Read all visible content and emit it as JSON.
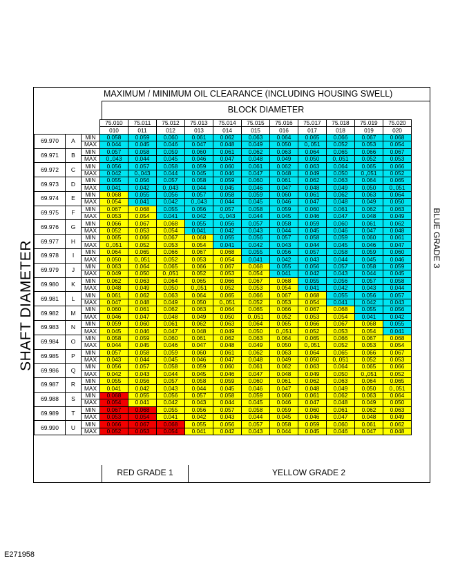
{
  "title": "MAXIMUM / MINIMUM OIL CLEARANCE (INCLUDING HOUSING SWELL)",
  "block_diameter_label": "BLOCK DIAMETER",
  "shaft_diameter_label": "SHAFT DIAMETER",
  "blue_grade_label": "BLUE GRADE 3",
  "red_grade_label": "RED GRADE 1",
  "yellow_grade_label": "YELLOW GRADE 2",
  "figure_code": "E271958",
  "colors": {
    "blue": "#00e5f2",
    "yellow": "#ffff00",
    "red": "#f20000"
  },
  "block_diameters": [
    "75.010",
    "75.011",
    "75.012",
    "75.013",
    "75.014",
    "75.015",
    "75.016",
    "75.017",
    "75.018",
    "75.019",
    "75.020"
  ],
  "block_codes": [
    "010",
    "011",
    "012",
    "013",
    "014",
    "015",
    "016",
    "017",
    "018",
    "019",
    "020"
  ],
  "rows": [
    {
      "diameter": "69.970",
      "letter": "A",
      "min": [
        "0.058",
        "0.059",
        "0.060",
        "0.061",
        "0.062",
        "0.063",
        "0.064",
        "0.065",
        "0.066",
        "0.067",
        "0.068"
      ],
      "max": [
        "0.044",
        "0.045",
        "0.046",
        "0.047",
        "0.048",
        "0.049",
        "0.050",
        "0,.051",
        "0.052",
        "0.053",
        "0.054"
      ],
      "min_colors": [
        "b",
        "b",
        "b",
        "b",
        "b",
        "b",
        "b",
        "b",
        "b",
        "b",
        "b"
      ],
      "max_colors": [
        "b",
        "b",
        "b",
        "b",
        "b",
        "b",
        "b",
        "b",
        "b",
        "b",
        "b"
      ]
    },
    {
      "diameter": "69.971",
      "letter": "B",
      "min": [
        "0.057",
        "0.058",
        "0.059",
        "0.060",
        "0.061",
        "0.062",
        "0.063",
        "0.064",
        "0.065",
        "0.066",
        "0.067"
      ],
      "max": [
        "0,.043",
        "0.044",
        "0.045",
        "0.046",
        "0.047",
        "0.048",
        "0.049",
        "0.050",
        "0,.051",
        "0.052",
        "0.053"
      ],
      "min_colors": [
        "b",
        "b",
        "b",
        "b",
        "b",
        "b",
        "b",
        "b",
        "b",
        "b",
        "b"
      ],
      "max_colors": [
        "b",
        "b",
        "b",
        "b",
        "b",
        "b",
        "b",
        "b",
        "b",
        "b",
        "b"
      ]
    },
    {
      "diameter": "69.972",
      "letter": "C",
      "min": [
        "0.056",
        "0.057",
        "0.058",
        "0.059",
        "0.060",
        "0.061",
        "0.062",
        "0.063",
        "0.064",
        "0.065",
        "0.066"
      ],
      "max": [
        "0.042",
        "0.,043",
        "0.044",
        "0.045",
        "0.046",
        "0.047",
        "0.048",
        "0.049",
        "0.050",
        "0.,051",
        "0.052"
      ],
      "min_colors": [
        "b",
        "b",
        "b",
        "b",
        "b",
        "b",
        "b",
        "b",
        "b",
        "b",
        "b"
      ],
      "max_colors": [
        "b",
        "b",
        "b",
        "b",
        "b",
        "b",
        "b",
        "b",
        "b",
        "b",
        "b"
      ]
    },
    {
      "diameter": "69.973",
      "letter": "D",
      "min": [
        "0.055",
        "0.056",
        "0.057",
        "0.058",
        "0.059",
        "0.060",
        "0.061",
        "0.062",
        "0.063",
        "0.064",
        "0.065"
      ],
      "max": [
        "0.041",
        "0.042",
        "0.,043",
        "0.044",
        "0.045",
        "0.046",
        "0.047",
        "0.048",
        "0.049",
        "0.050",
        "0.,051"
      ],
      "min_colors": [
        "b",
        "b",
        "b",
        "b",
        "b",
        "b",
        "b",
        "b",
        "b",
        "b",
        "b"
      ],
      "max_colors": [
        "b",
        "b",
        "b",
        "b",
        "b",
        "b",
        "b",
        "b",
        "b",
        "b",
        "b"
      ]
    },
    {
      "diameter": "69.974",
      "letter": "E",
      "min": [
        "0.068",
        "0.055",
        "0.056",
        "0.057",
        "0.058",
        "0.059",
        "0.060",
        "0.061",
        "0.062",
        "0.063",
        "0.064"
      ],
      "max": [
        "0.054",
        "0.041",
        "0.042",
        "0,.043",
        "0.044",
        "0.045",
        "0.046",
        "0.047",
        "0.048",
        "0.049",
        "0.050"
      ],
      "min_colors": [
        "y",
        "b",
        "b",
        "b",
        "b",
        "b",
        "b",
        "b",
        "b",
        "b",
        "b"
      ],
      "max_colors": [
        "y",
        "b",
        "b",
        "b",
        "b",
        "b",
        "b",
        "b",
        "b",
        "b",
        "b"
      ]
    },
    {
      "diameter": "69.975",
      "letter": "F",
      "min": [
        "0.067",
        "0.068",
        "0.055",
        "0.056",
        "0.057",
        "0.058",
        "0.059",
        "0.060",
        "0.061",
        "0.062",
        "0.063"
      ],
      "max": [
        "0.053",
        "0.054",
        "0.041",
        "0.042",
        "0,.043",
        "0.044",
        "0.045",
        "0.046",
        "0.047",
        "0.048",
        "0.049"
      ],
      "min_colors": [
        "y",
        "y",
        "b",
        "b",
        "b",
        "b",
        "b",
        "b",
        "b",
        "b",
        "b"
      ],
      "max_colors": [
        "y",
        "y",
        "b",
        "b",
        "b",
        "b",
        "b",
        "b",
        "b",
        "b",
        "b"
      ]
    },
    {
      "diameter": "69.976",
      "letter": "G",
      "min": [
        "0.066",
        "0.067",
        "0.068",
        "0.055",
        "0.056",
        "0.057",
        "0.058",
        "0.059",
        "0.060",
        "0.061",
        "0.062"
      ],
      "max": [
        "0.052",
        "0.053",
        "0.054",
        "0.041",
        "0.042",
        "0.043",
        "0.044",
        "0.045",
        "0.046",
        "0.047",
        "0.048"
      ],
      "min_colors": [
        "y",
        "y",
        "y",
        "b",
        "b",
        "b",
        "b",
        "b",
        "b",
        "b",
        "b"
      ],
      "max_colors": [
        "y",
        "y",
        "y",
        "b",
        "b",
        "b",
        "b",
        "b",
        "b",
        "b",
        "b"
      ]
    },
    {
      "diameter": "69.977",
      "letter": "H",
      "min": [
        "0.065",
        "0.066",
        "0.067",
        "0.068",
        "0.055",
        "0.056",
        "0.057",
        "0.058",
        "0.059",
        "0.060",
        "0.061"
      ],
      "max": [
        "0,.051",
        "0.052",
        "0.053",
        "0.054",
        "0.041",
        "0.042",
        "0.043",
        "0.044",
        "0.045",
        "0.046",
        "0.047"
      ],
      "min_colors": [
        "y",
        "y",
        "y",
        "y",
        "b",
        "b",
        "b",
        "b",
        "b",
        "b",
        "b"
      ],
      "max_colors": [
        "y",
        "y",
        "y",
        "y",
        "b",
        "b",
        "b",
        "b",
        "b",
        "b",
        "b"
      ]
    },
    {
      "diameter": "69.978",
      "letter": "I",
      "min": [
        "0.064",
        "0.065",
        "0.066",
        "0.067",
        "0.068",
        "0.055",
        "0.056",
        "0.057",
        "0.058",
        "0.059",
        "0.060"
      ],
      "max": [
        "0.050",
        "0.,051",
        "0.052",
        "0.053",
        "0.054",
        "0.041",
        "0.042",
        "0.043",
        "0.044",
        "0.045",
        "0.046"
      ],
      "min_colors": [
        "y",
        "y",
        "y",
        "y",
        "y",
        "b",
        "b",
        "b",
        "b",
        "b",
        "b"
      ],
      "max_colors": [
        "y",
        "y",
        "y",
        "y",
        "y",
        "b",
        "b",
        "b",
        "b",
        "b",
        "b"
      ]
    },
    {
      "diameter": "69.979",
      "letter": "J",
      "min": [
        "0.063",
        "0.064",
        "0.065",
        "0.066",
        "0.067",
        "0.068",
        "0.055",
        "0.056",
        "0.057",
        "0.058",
        "0.059"
      ],
      "max": [
        "0.049",
        "0.050",
        "0.,051",
        "0.052",
        "0.053",
        "0.054",
        "0.041",
        "0.042",
        "0.043",
        "0.044",
        "0.045"
      ],
      "min_colors": [
        "y",
        "y",
        "y",
        "y",
        "y",
        "y",
        "b",
        "b",
        "b",
        "b",
        "b"
      ],
      "max_colors": [
        "y",
        "y",
        "y",
        "y",
        "y",
        "y",
        "b",
        "b",
        "b",
        "b",
        "b"
      ]
    },
    {
      "diameter": "69.980",
      "letter": "K",
      "min": [
        "0.062",
        "0.063",
        "0.064",
        "0.065",
        "0.066",
        "0.067",
        "0.068",
        "0.055",
        "0.056",
        "0.057",
        "0.058"
      ],
      "max": [
        "0.048",
        "0.049",
        "0.050",
        "0.,051",
        "0.052",
        "0.053",
        "0.054",
        "0.041",
        "0.042",
        "0.043",
        "0.044"
      ],
      "min_colors": [
        "y",
        "y",
        "y",
        "y",
        "y",
        "y",
        "y",
        "b",
        "b",
        "b",
        "b"
      ],
      "max_colors": [
        "y",
        "y",
        "y",
        "y",
        "y",
        "y",
        "y",
        "b",
        "b",
        "b",
        "b"
      ]
    },
    {
      "diameter": "69.981",
      "letter": "L",
      "min": [
        "0.061",
        "0.062",
        "0.063",
        "0.064",
        "0.065",
        "0.066",
        "0.067",
        "0.068",
        "0.055",
        "0.056",
        "0.057"
      ],
      "max": [
        "0.047",
        "0.048",
        "0.049",
        "0.050",
        "0.,051",
        "0.052",
        "0.053",
        "0.054",
        "0.041",
        "0.042",
        "0.043"
      ],
      "min_colors": [
        "y",
        "y",
        "y",
        "y",
        "y",
        "y",
        "y",
        "y",
        "b",
        "b",
        "b"
      ],
      "max_colors": [
        "y",
        "y",
        "y",
        "y",
        "y",
        "y",
        "y",
        "y",
        "b",
        "b",
        "b"
      ]
    },
    {
      "diameter": "69.982",
      "letter": "M",
      "min": [
        "0.060",
        "0.061",
        "0.062",
        "0.063",
        "0.064",
        "0.065",
        "0.066",
        "0.067",
        "0.068",
        "0.055",
        "0.056"
      ],
      "max": [
        "0.046",
        "0.047",
        "0.048",
        "0.049",
        "0.050",
        "0.,051",
        "0.052",
        "0.053",
        "0.054",
        "0.041",
        "0.042"
      ],
      "min_colors": [
        "y",
        "y",
        "y",
        "y",
        "y",
        "y",
        "y",
        "y",
        "y",
        "b",
        "b"
      ],
      "max_colors": [
        "y",
        "y",
        "y",
        "y",
        "y",
        "y",
        "y",
        "y",
        "y",
        "b",
        "b"
      ]
    },
    {
      "diameter": "69.983",
      "letter": "N",
      "min": [
        "0.059",
        "0.060",
        "0.061",
        "0.062",
        "0.063",
        "0.064",
        "0.065",
        "0.066",
        "0.067",
        "0.068",
        "0.055"
      ],
      "max": [
        "0.045",
        "0.046",
        "0.047",
        "0.048",
        "0.049",
        "0.050",
        "0.,051",
        "0.052",
        "0.053",
        "0.054",
        "0.041"
      ],
      "min_colors": [
        "y",
        "y",
        "y",
        "y",
        "y",
        "y",
        "y",
        "y",
        "y",
        "y",
        "b"
      ],
      "max_colors": [
        "y",
        "y",
        "y",
        "y",
        "y",
        "y",
        "y",
        "y",
        "y",
        "y",
        "b"
      ]
    },
    {
      "diameter": "69.984",
      "letter": "O",
      "min": [
        "0.058",
        "0.059",
        "0.060",
        "0.061",
        "0.062",
        "0.063",
        "0.064",
        "0.065",
        "0.066",
        "0.067",
        "0.068"
      ],
      "max": [
        "0.044",
        "0.045",
        "0.046",
        "0.047",
        "0.048",
        "0.049",
        "0.050",
        "0,.051",
        "0.052",
        "0.053",
        "0.054"
      ],
      "min_colors": [
        "y",
        "y",
        "y",
        "y",
        "y",
        "y",
        "y",
        "y",
        "y",
        "y",
        "y"
      ],
      "max_colors": [
        "y",
        "y",
        "y",
        "y",
        "y",
        "y",
        "y",
        "y",
        "y",
        "y",
        "y"
      ]
    },
    {
      "diameter": "69.985",
      "letter": "P",
      "min": [
        "0.057",
        "0.058",
        "0.059",
        "0.060",
        "0.061",
        "0.062",
        "0.063",
        "0.064",
        "0.065",
        "0.066",
        "0.067"
      ],
      "max": [
        "0.043",
        "0.044",
        "0.045",
        "0.046",
        "0.047",
        "0.048",
        "0.049",
        "0.050",
        "0,.051",
        "0.052",
        "0.053"
      ],
      "min_colors": [
        "y",
        "y",
        "y",
        "y",
        "y",
        "y",
        "y",
        "y",
        "y",
        "y",
        "y"
      ],
      "max_colors": [
        "y",
        "y",
        "y",
        "y",
        "y",
        "y",
        "y",
        "y",
        "y",
        "y",
        "y"
      ]
    },
    {
      "diameter": "69.986",
      "letter": "Q",
      "min": [
        "0.056",
        "0.057",
        "0.058",
        "0.059",
        "0.060",
        "0.061",
        "0.062",
        "0.063",
        "0.064",
        "0.065",
        "0.066"
      ],
      "max": [
        "0.042",
        "0.043",
        "0.044",
        "0.045",
        "0.046",
        "0.047",
        "0.048",
        "0.049",
        "0.050",
        "0.,051",
        "0.052"
      ],
      "min_colors": [
        "y",
        "y",
        "y",
        "y",
        "y",
        "y",
        "y",
        "y",
        "y",
        "y",
        "y"
      ],
      "max_colors": [
        "y",
        "y",
        "y",
        "y",
        "y",
        "y",
        "y",
        "y",
        "y",
        "y",
        "y"
      ]
    },
    {
      "diameter": "69.987",
      "letter": "R",
      "min": [
        "0.055",
        "0.056",
        "0.057",
        "0.058",
        "0.059",
        "0.060",
        "0.061",
        "0.062",
        "0.063",
        "0.064",
        "0.065"
      ],
      "max": [
        "0.041",
        "0.042",
        "0.043",
        "0.044",
        "0.045",
        "0.046",
        "0.047",
        "0.048",
        "0.049",
        "0.050",
        "0.,051"
      ],
      "min_colors": [
        "y",
        "y",
        "y",
        "y",
        "y",
        "y",
        "y",
        "y",
        "y",
        "y",
        "y"
      ],
      "max_colors": [
        "y",
        "y",
        "y",
        "y",
        "y",
        "y",
        "y",
        "y",
        "y",
        "y",
        "y"
      ]
    },
    {
      "diameter": "69.988",
      "letter": "S",
      "min": [
        "0.068",
        "0.055",
        "0.056",
        "0.057",
        "0.058",
        "0.059",
        "0.060",
        "0.061",
        "0.062",
        "0.063",
        "0.064"
      ],
      "max": [
        "0.054",
        "0.041",
        "0.042",
        "0.043",
        "0.044",
        "0.045",
        "0.046",
        "0.047",
        "0.048",
        "0.049",
        "0.050"
      ],
      "min_colors": [
        "r",
        "y",
        "y",
        "y",
        "y",
        "y",
        "y",
        "y",
        "y",
        "y",
        "y"
      ],
      "max_colors": [
        "r",
        "y",
        "y",
        "y",
        "y",
        "y",
        "y",
        "y",
        "y",
        "y",
        "y"
      ]
    },
    {
      "diameter": "69.989",
      "letter": "T",
      "min": [
        "0.067",
        "0.068",
        "0.055",
        "0.056",
        "0.057",
        "0.058",
        "0.059",
        "0.060",
        "0.061",
        "0.062",
        "0.063"
      ],
      "max": [
        "0.053",
        "0.054",
        "0.041",
        "0.042",
        "0.043",
        "0.044",
        "0.045",
        "0.046",
        "0.047",
        "0.048",
        "0.049"
      ],
      "min_colors": [
        "r",
        "r",
        "y",
        "y",
        "y",
        "y",
        "y",
        "y",
        "y",
        "y",
        "y"
      ],
      "max_colors": [
        "r",
        "r",
        "y",
        "y",
        "y",
        "y",
        "y",
        "y",
        "y",
        "y",
        "y"
      ]
    },
    {
      "diameter": "69.990",
      "letter": "U",
      "min": [
        "0.066",
        "0.067",
        "0.068",
        "0.055",
        "0.056",
        "0.057",
        "0.058",
        "0.059",
        "0.060",
        "0.061",
        "0.062"
      ],
      "max": [
        "0.052",
        "0.053",
        "0.054",
        "0.041",
        "0.042",
        "0.043",
        "0.044",
        "0.045",
        "0.046",
        "0.047",
        "0.048"
      ],
      "min_colors": [
        "r",
        "r",
        "r",
        "y",
        "y",
        "y",
        "y",
        "y",
        "y",
        "y",
        "y"
      ],
      "max_colors": [
        "r",
        "r",
        "r",
        "y",
        "y",
        "y",
        "y",
        "y",
        "y",
        "y",
        "y"
      ]
    }
  ],
  "min_label": "MIN",
  "max_label": "MAX"
}
